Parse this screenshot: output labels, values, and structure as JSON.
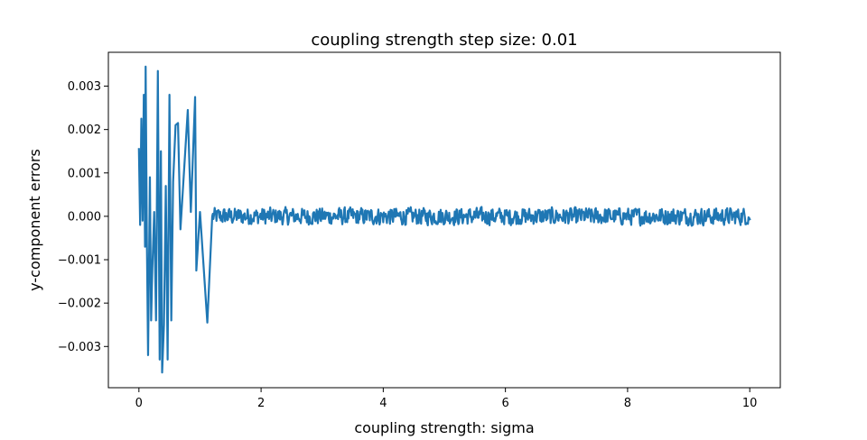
{
  "chart_data": {
    "type": "line",
    "title": "coupling strength step size: 0.01",
    "xlabel": "coupling strength: sigma",
    "ylabel": "y-component errors",
    "xlim": [
      -0.5,
      10.5
    ],
    "ylim": [
      -0.00395,
      0.00378
    ],
    "x_ticks": [
      0,
      2,
      4,
      6,
      8,
      10
    ],
    "x_tick_labels": [
      "0",
      "2",
      "4",
      "6",
      "8",
      "10"
    ],
    "y_ticks": [
      0.003,
      0.002,
      0.001,
      0.0,
      -0.001,
      -0.002,
      -0.003
    ],
    "y_tick_labels": [
      "0.003",
      "0.002",
      "0.001",
      "0.000",
      "−0.001",
      "−0.002",
      "−0.003"
    ],
    "grid": false,
    "series": [
      {
        "color": "#1f77b4",
        "x_start": 0.0,
        "x_step": 0.01,
        "x_end": 10.0,
        "notable_points": [
          {
            "x": 0.0,
            "y": 0.00155
          },
          {
            "x": 0.02,
            "y": -0.0002
          },
          {
            "x": 0.04,
            "y": 0.00225
          },
          {
            "x": 0.06,
            "y": -0.0001
          },
          {
            "x": 0.08,
            "y": 0.0028
          },
          {
            "x": 0.1,
            "y": -0.0007
          },
          {
            "x": 0.11,
            "y": 0.00345
          },
          {
            "x": 0.13,
            "y": -0.0005
          },
          {
            "x": 0.15,
            "y": -0.0032
          },
          {
            "x": 0.18,
            "y": 0.0009
          },
          {
            "x": 0.2,
            "y": -0.0024
          },
          {
            "x": 0.22,
            "y": -0.0012
          },
          {
            "x": 0.25,
            "y": 0.0001
          },
          {
            "x": 0.28,
            "y": -0.0024
          },
          {
            "x": 0.31,
            "y": 0.00335
          },
          {
            "x": 0.34,
            "y": -0.0033
          },
          {
            "x": 0.36,
            "y": 0.0015
          },
          {
            "x": 0.38,
            "y": -0.0036
          },
          {
            "x": 0.41,
            "y": -0.0025
          },
          {
            "x": 0.44,
            "y": 0.0007
          },
          {
            "x": 0.47,
            "y": -0.0033
          },
          {
            "x": 0.5,
            "y": 0.0028
          },
          {
            "x": 0.53,
            "y": -0.0024
          },
          {
            "x": 0.56,
            "y": 0.0008
          },
          {
            "x": 0.6,
            "y": 0.0021
          },
          {
            "x": 0.64,
            "y": 0.00215
          },
          {
            "x": 0.68,
            "y": -0.0003
          },
          {
            "x": 0.8,
            "y": 0.00245
          },
          {
            "x": 0.85,
            "y": 0.0001
          },
          {
            "x": 0.92,
            "y": 0.00275
          },
          {
            "x": 0.94,
            "y": -0.00125
          },
          {
            "x": 1.0,
            "y": 0.0001
          },
          {
            "x": 1.12,
            "y": -0.00245
          },
          {
            "x": 1.2,
            "y": 0.0
          }
        ],
        "steady_state_amplitude": 0.00025
      }
    ]
  }
}
